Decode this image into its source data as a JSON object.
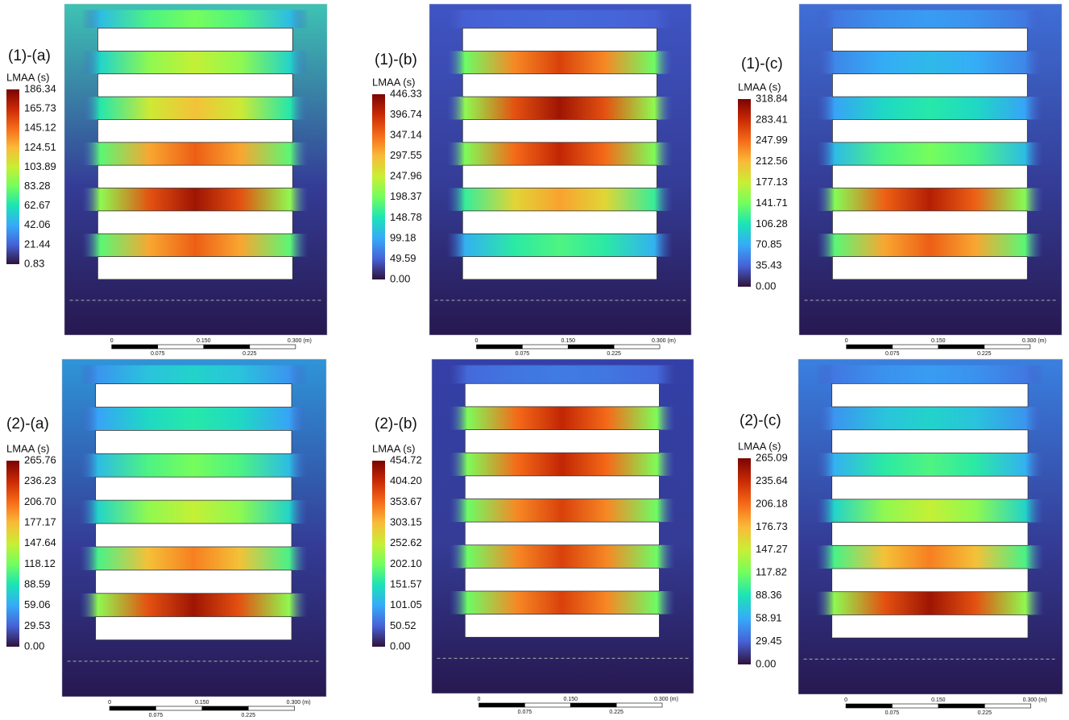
{
  "panels": [
    {
      "label": "(1)-(a)",
      "colorbar": {
        "title": "LMAA (s)",
        "ticks": [
          "186.34",
          "165.73",
          "145.12",
          "124.51",
          "103.89",
          "83.28",
          "62.67",
          "42.06",
          "21.44",
          "0.83"
        ]
      },
      "scale_bar": {
        "top": [
          "0",
          "0.150",
          "0.300 (m)"
        ],
        "bottom": [
          "0.075",
          "0.225"
        ]
      }
    },
    {
      "label": "(1)-(b)",
      "colorbar": {
        "title": "LMAA (s)",
        "ticks": [
          "446.33",
          "396.74",
          "347.14",
          "297.55",
          "247.96",
          "198.37",
          "148.78",
          "99.18",
          "49.59",
          "0.00"
        ]
      },
      "scale_bar": {
        "top": [
          "0",
          "0.150",
          "0.300 (m)"
        ],
        "bottom": [
          "0.075",
          "0.225"
        ]
      }
    },
    {
      "label": "(1)-(c)",
      "colorbar": {
        "title": "LMAA (s)",
        "ticks": [
          "318.84",
          "283.41",
          "247.99",
          "212.56",
          "177.13",
          "141.71",
          "106.28",
          "70.85",
          "35.43",
          "0.00"
        ]
      },
      "scale_bar": {
        "top": [
          "0",
          "0.150",
          "0.300 (m)"
        ],
        "bottom": [
          "0.075",
          "0.225"
        ]
      }
    },
    {
      "label": "(2)-(a)",
      "colorbar": {
        "title": "LMAA (s)",
        "ticks": [
          "265.76",
          "236.23",
          "206.70",
          "177.17",
          "147.64",
          "118.12",
          "88.59",
          "59.06",
          "29.53",
          "0.00"
        ]
      },
      "scale_bar": {
        "top": [
          "0",
          "0.150",
          "0.300 (m)"
        ],
        "bottom": [
          "0.075",
          "0.225"
        ]
      }
    },
    {
      "label": "(2)-(b)",
      "colorbar": {
        "title": "LMAA (s)",
        "ticks": [
          "454.72",
          "404.20",
          "353.67",
          "303.15",
          "252.62",
          "202.10",
          "151.57",
          "101.05",
          "50.52",
          "0.00"
        ]
      },
      "scale_bar": {
        "top": [
          "0",
          "0.150",
          "0.300 (m)"
        ],
        "bottom": [
          "0.075",
          "0.225"
        ]
      }
    },
    {
      "label": "(2)-(c)",
      "colorbar": {
        "title": "LMAA (s)",
        "ticks": [
          "265.09",
          "235.64",
          "206.18",
          "176.73",
          "147.27",
          "117.82",
          "88.36",
          "58.91",
          "29.45",
          "0.00"
        ]
      },
      "scale_bar": {
        "top": [
          "0",
          "0.150",
          "0.300 (m)"
        ],
        "bottom": [
          "0.075",
          "0.225"
        ]
      }
    }
  ]
}
